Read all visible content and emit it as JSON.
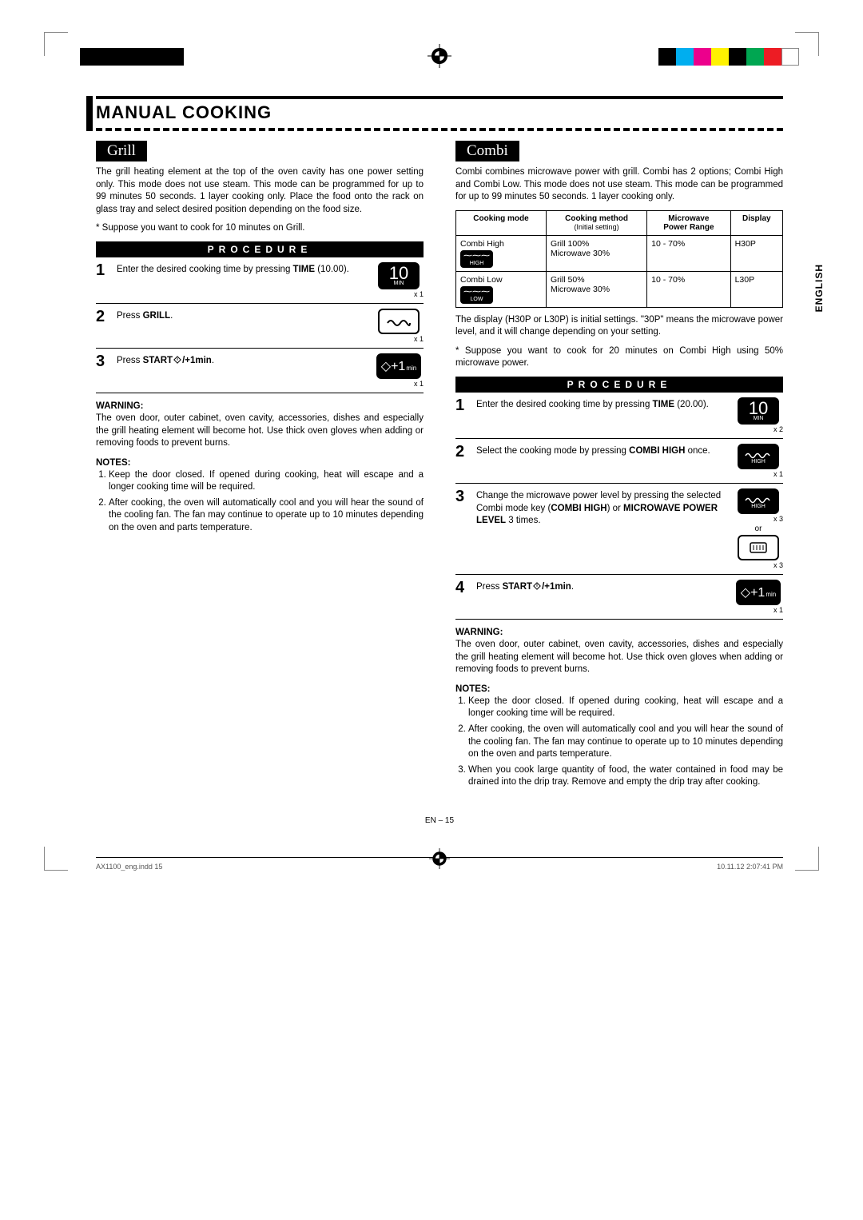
{
  "reg_colors": [
    "#000000",
    "#00aeef",
    "#ec008c",
    "#fff200",
    "#000000",
    "#00a651",
    "#ed1c24",
    "#ffffff"
  ],
  "side_label": "ENGLISH",
  "title": "MANUAL COOKING",
  "grill": {
    "label": "Grill",
    "intro": "The grill heating element at the top of the oven cavity has one power setting only. This mode does not use steam. This mode can be programmed for up to 99 minutes 50 seconds. 1 layer cooking only. Place the food onto the rack on glass tray and select desired position depending on the food size.",
    "suppose": "* Suppose you want to cook for 10 minutes on Grill.",
    "proc_label": "PROCEDURE",
    "steps": {
      "s1_num": "1",
      "s1_text_a": "Enter the desired cooking time by pressing ",
      "s1_text_b": "TIME",
      "s1_text_c": " (10.00).",
      "s1_icon_big": "10",
      "s1_icon_small": "MIN",
      "s1_caption": "x 1",
      "s2_num": "2",
      "s2_text_a": "Press ",
      "s2_text_b": "GRILL",
      "s2_text_c": ".",
      "s2_caption": "x 1",
      "s3_num": "3",
      "s3_text_a": "Press ",
      "s3_text_b": "START",
      "s3_text_c": "/+1min",
      "s3_text_d": ".",
      "s3_icon": "◇+1",
      "s3_icon_small": "min",
      "s3_caption": "x 1"
    },
    "warn_label": "WARNING:",
    "warn_text": "The oven door, outer cabinet, oven cavity, accessories, dishes and especially the grill heating element will become hot. Use thick oven gloves when adding or removing foods to prevent burns.",
    "notes_label": "NOTES:",
    "notes": [
      "Keep the door closed. If opened during cooking, heat will escape and a longer cooking time will be required.",
      "After cooking, the oven will automatically cool and you will hear the sound of the cooling fan. The fan may continue to operate up to 10 minutes depending on the oven and parts temperature."
    ]
  },
  "combi": {
    "label": "Combi",
    "intro": "Combi combines microwave power with grill. Combi has 2 options; Combi High and Combi Low. This mode does not use steam. This mode can be programmed for up to 99 minutes 50 seconds. 1 layer cooking only.",
    "table": {
      "h1": "Cooking mode",
      "h2a": "Cooking method",
      "h2b": "(Initial setting)",
      "h3a": "Microwave",
      "h3b": "Power Range",
      "h4": "Display",
      "r1_mode": "Combi High",
      "r1_mode_icon": "HIGH",
      "r1_method_a": "Grill 100%",
      "r1_method_b": "Microwave 30%",
      "r1_range": "10 - 70%",
      "r1_display": "H30P",
      "r2_mode": "Combi Low",
      "r2_mode_icon": "LOW",
      "r2_method_a": "Grill 50%",
      "r2_method_b": "Microwave 30%",
      "r2_range": "10 - 70%",
      "r2_display": "L30P"
    },
    "after_table": "The display (H30P or L30P) is initial settings. \"30P\" means the microwave power level, and it will change depending on your setting.",
    "suppose": "* Suppose you want to cook for 20 minutes on Combi High using 50% microwave power.",
    "proc_label": "PROCEDURE",
    "steps": {
      "s1_num": "1",
      "s1_text_a": "Enter the desired cooking time by pressing ",
      "s1_text_b": "TIME",
      "s1_text_c": " (20.00).",
      "s1_icon_big": "10",
      "s1_icon_small": "MIN",
      "s1_caption": "x 2",
      "s2_num": "2",
      "s2_text_a": "Select the cooking mode by pressing ",
      "s2_text_b": "COMBI HIGH",
      "s2_text_c": " once.",
      "s2_icon_label": "HIGH",
      "s2_caption": "x 1",
      "s3_num": "3",
      "s3_text_a": "Change the microwave power level by pressing the selected Combi mode key (",
      "s3_text_b": "COMBI HIGH",
      "s3_text_c": ") or ",
      "s3_text_d": "MICROWAVE POWER LEVEL",
      "s3_text_e": " 3 times.",
      "s3_icon_label_top": "HIGH",
      "s3_caption_top": "x 3",
      "s3_mid": "or",
      "s3_caption_bot": "x 3",
      "s4_num": "4",
      "s4_text_a": "Press ",
      "s4_text_b": "START",
      "s4_text_c": "/+1min",
      "s4_text_d": ".",
      "s4_icon": "◇+1",
      "s4_icon_small": "min",
      "s4_caption": "x 1"
    },
    "warn_label": "WARNING:",
    "warn_text": "The oven door, outer cabinet, oven cavity, accessories, dishes and especially the grill heating element will become hot. Use thick oven gloves when adding or removing foods to prevent burns.",
    "notes_label": "NOTES:",
    "notes": [
      "Keep the door closed. If opened during cooking, heat will escape and a longer cooking time will be required.",
      "After cooking, the oven will automatically cool and you will hear the sound of the cooling fan. The fan may continue to operate up to 10 minutes depending on the oven and parts temperature.",
      "When you cook large quantity of food, the water contained in food may be drained into the drip tray. Remove and empty the drip tray after cooking."
    ]
  },
  "page_num": "EN – 15",
  "footer_left": "AX1100_eng.indd   15",
  "footer_right": "10.11.12   2:07:41 PM"
}
